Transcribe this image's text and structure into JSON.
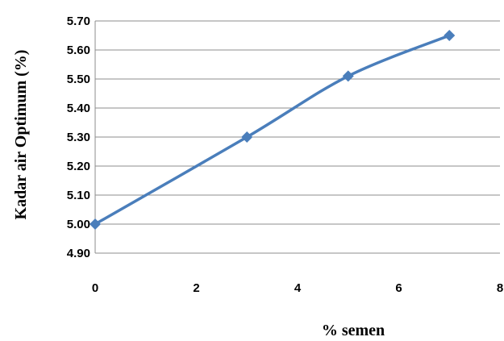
{
  "chart_data": {
    "type": "line",
    "title": "",
    "xlabel": "% semen",
    "ylabel": "Kadar air Optimum (%)",
    "xlim": [
      0,
      8
    ],
    "ylim": [
      4.9,
      5.7
    ],
    "x_ticks": [
      "0",
      "2",
      "4",
      "6",
      "8"
    ],
    "y_ticks": [
      "4.90",
      "5.00",
      "5.10",
      "5.20",
      "5.30",
      "5.40",
      "5.50",
      "5.60",
      "5.70"
    ],
    "grid": "horizontal",
    "legend": "none",
    "series": [
      {
        "color": "#4a7ebb",
        "marker": "diamond",
        "x": [
          0,
          3,
          5,
          7
        ],
        "y": [
          5.0,
          5.3,
          5.51,
          5.65
        ]
      }
    ]
  }
}
